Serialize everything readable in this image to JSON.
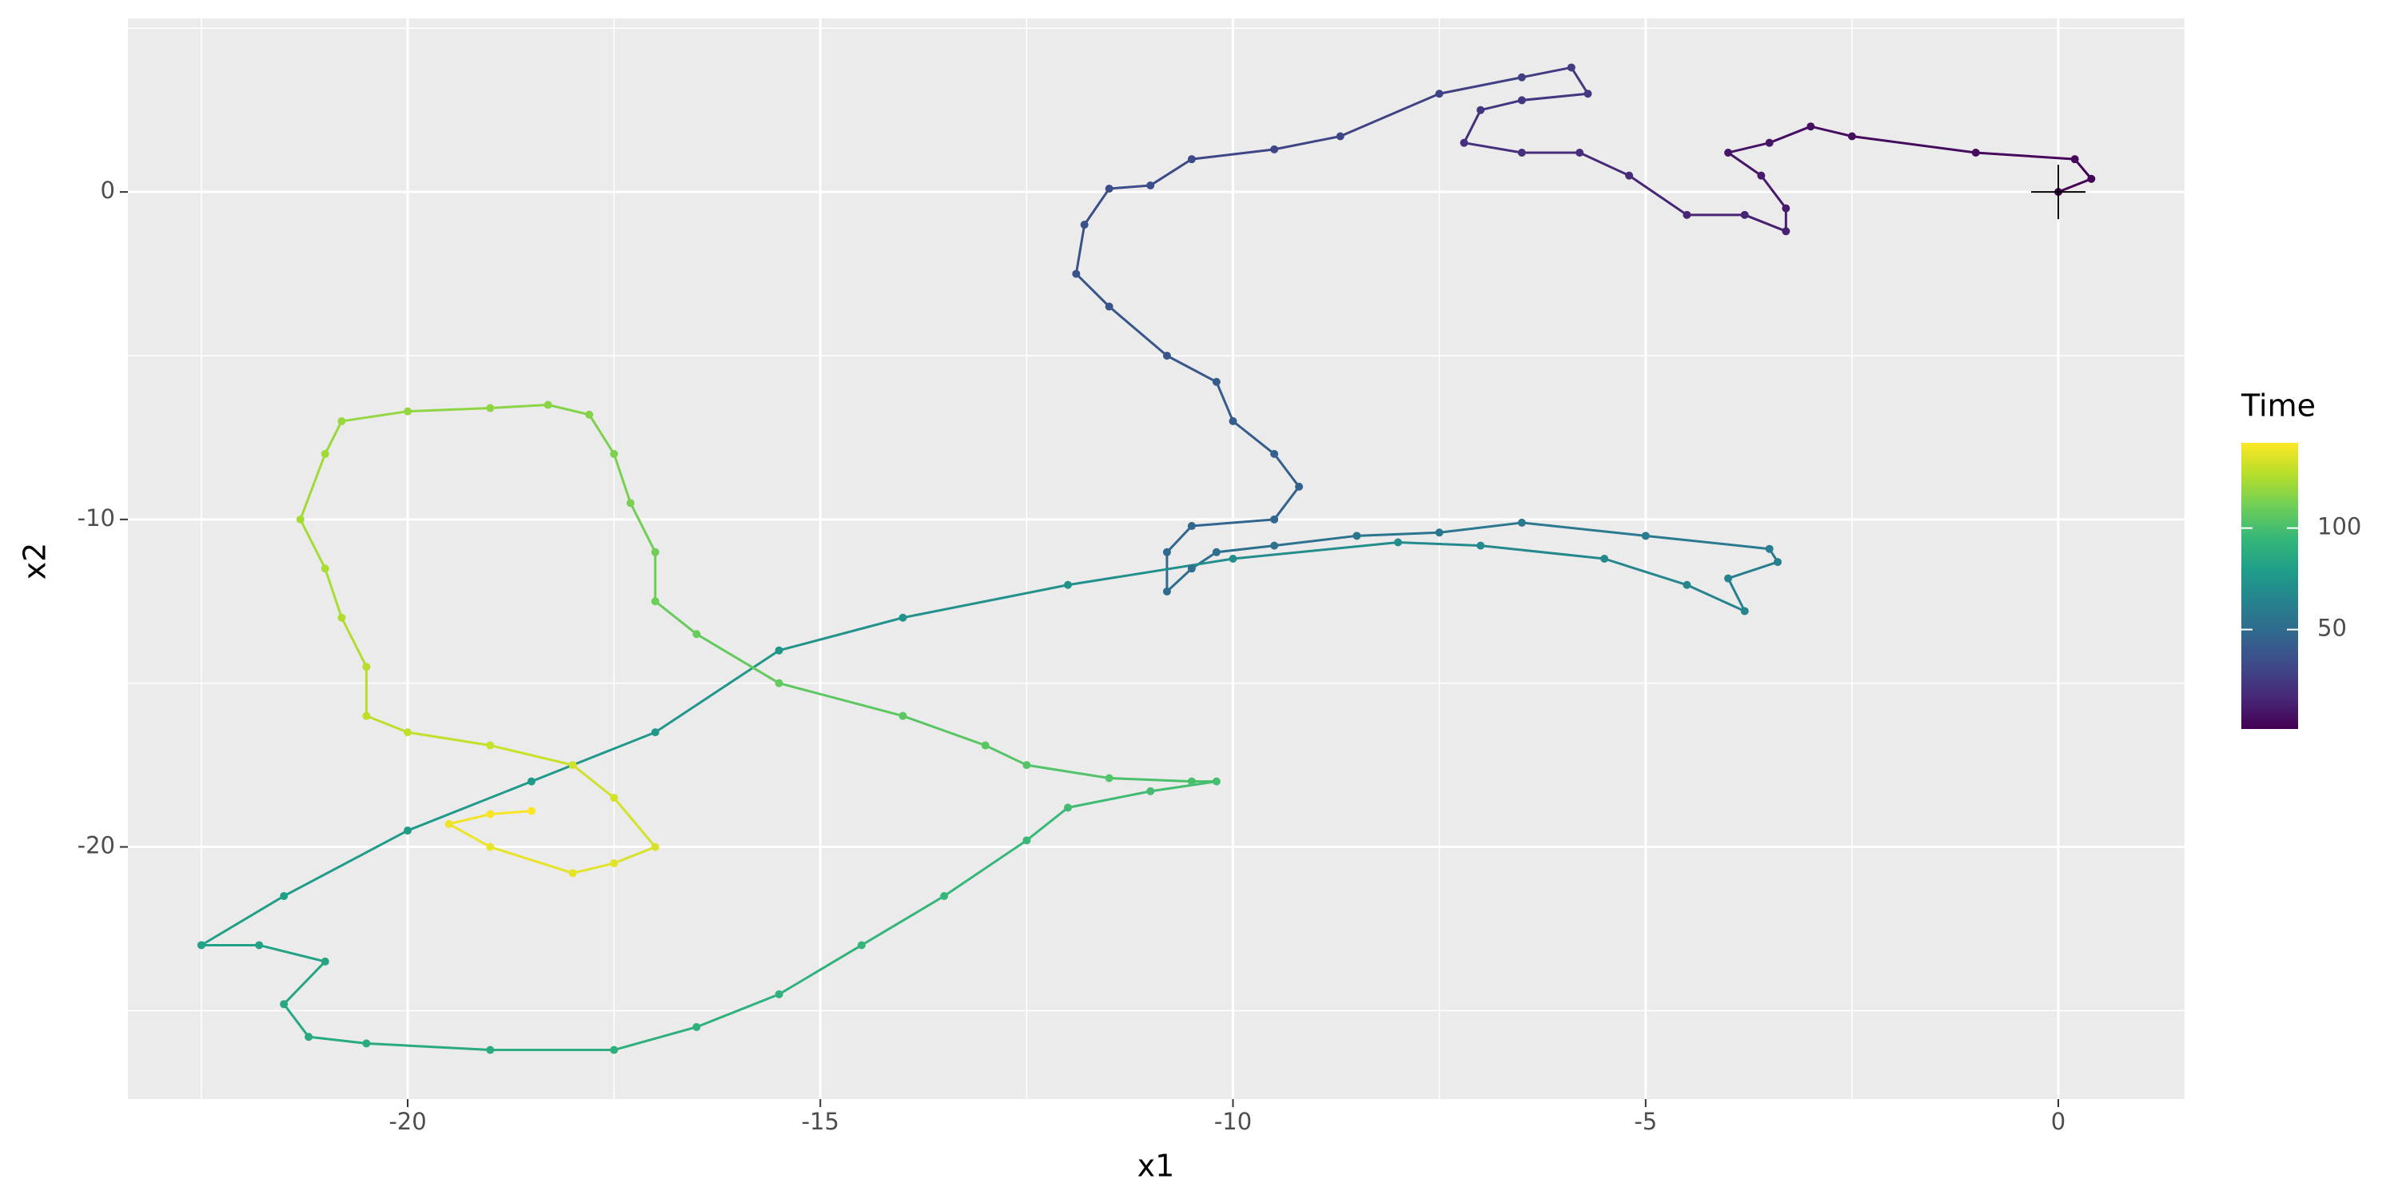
{
  "chart_data": {
    "type": "path",
    "x_label": "x1",
    "y_label": "x2",
    "x": [
      0,
      0.4,
      0.2,
      -1,
      -2.5,
      -3,
      -3.5,
      -4,
      -3.6,
      -3.3,
      -3.3,
      -3.8,
      -4.5,
      -5.2,
      -5.8,
      -6.5,
      -7.2,
      -7,
      -6.5,
      -5.7,
      -5.9,
      -6.5,
      -7.5,
      -8.7,
      -9.5,
      -10.5,
      -11,
      -11.5,
      -11.8,
      -11.9,
      -11.5,
      -10.8,
      -10.2,
      -10,
      -9.5,
      -9.2,
      -9.5,
      -10.5,
      -10.8,
      -10.8,
      -10.5,
      -10.2,
      -9.5,
      -8.5,
      -7.5,
      -6.5,
      -5,
      -3.5,
      -3.4,
      -4,
      -3.8,
      -4.5,
      -5.5,
      -7,
      -8,
      -10,
      -12,
      -14,
      -15.5,
      -17,
      -18.5,
      -20,
      -21.5,
      -22.5,
      -21.8,
      -21,
      -21.5,
      -21.2,
      -20.5,
      -19,
      -17.5,
      -16.5,
      -15.5,
      -14.5,
      -13.5,
      -12.5,
      -12,
      -11,
      -10.2,
      -10.5,
      -11.5,
      -12.5,
      -13,
      -14,
      -15.5,
      -16.5,
      -17,
      -17,
      -17.3,
      -17.5,
      -17.8,
      -18.3,
      -19,
      -20,
      -20.8,
      -21,
      -21.3,
      -21,
      -20.8,
      -20.5,
      -20.5,
      -20,
      -19,
      -18,
      -17.5,
      -17,
      -17.5,
      -18,
      -19,
      -19.5,
      -19,
      -18.5
    ],
    "y": [
      0,
      0.4,
      1,
      1.2,
      1.7,
      2,
      1.5,
      1.2,
      0.5,
      -0.5,
      -1.2,
      -0.7,
      -0.7,
      0.5,
      1.2,
      1.2,
      1.5,
      2.5,
      2.8,
      3,
      3.8,
      3.5,
      3,
      1.7,
      1.3,
      1,
      0.2,
      0.1,
      -1,
      -2.5,
      -3.5,
      -5,
      -5.8,
      -7,
      -8,
      -9,
      -10,
      -10.2,
      -11,
      -12.2,
      -11.5,
      -11,
      -10.8,
      -10.5,
      -10.4,
      -10.1,
      -10.5,
      -10.9,
      -11.3,
      -11.8,
      -12.8,
      -12,
      -11.2,
      -10.8,
      -10.7,
      -11.2,
      -12,
      -13,
      -14,
      -16.5,
      -18,
      -19.5,
      -21.5,
      -23,
      -23,
      -23.5,
      -24.8,
      -25.8,
      -26,
      -26.2,
      -26.2,
      -25.5,
      -24.5,
      -23,
      -21.5,
      -19.8,
      -18.8,
      -18.3,
      -18,
      -18,
      -17.9,
      -17.5,
      -16.9,
      -16,
      -15,
      -13.5,
      -12.5,
      -11,
      -9.5,
      -8,
      -6.8,
      -6.5,
      -6.6,
      -6.7,
      -7,
      -8,
      -10,
      -11.5,
      -13,
      -14.5,
      -16,
      -16.5,
      -16.9,
      -17.5,
      -18.5,
      -20,
      -20.5,
      -20.8,
      -20,
      -19.3,
      -19,
      -18.9
    ],
    "color_values": [
      1,
      2,
      4,
      5,
      6,
      7,
      9,
      10,
      11,
      12,
      14,
      15,
      16,
      18,
      19,
      20,
      21,
      23,
      24,
      25,
      26,
      28,
      29,
      30,
      31,
      33,
      34,
      35,
      37,
      38,
      39,
      40,
      42,
      43,
      44,
      45,
      47,
      48,
      49,
      51,
      52,
      53,
      54,
      56,
      57,
      58,
      59,
      61,
      62,
      63,
      65,
      66,
      67,
      68,
      70,
      71,
      72,
      73,
      75,
      76,
      77,
      78,
      80,
      81,
      82,
      84,
      85,
      86,
      87,
      89,
      90,
      91,
      92,
      94,
      95,
      96,
      98,
      99,
      100,
      101,
      103,
      104,
      105,
      106,
      108,
      109,
      110,
      111,
      113,
      114,
      115,
      117,
      118,
      119,
      120,
      122,
      123,
      124,
      125,
      127,
      128,
      129,
      131,
      132,
      133,
      134,
      136,
      137,
      138,
      139,
      141,
      142
    ],
    "color_label": "Time",
    "colormap": [
      "#440154",
      "#482878",
      "#3e4989",
      "#31688e",
      "#26828e",
      "#1f9e89",
      "#35b779",
      "#6ece58",
      "#b5de2b",
      "#fde725"
    ],
    "color_lim": [
      1,
      142
    ],
    "color_ticks": [
      50,
      100
    ],
    "xlim": [
      -23.39,
      1.53
    ],
    "ylim": [
      -27.7,
      5.3
    ],
    "xticks": [
      -20,
      -15,
      -10,
      -5,
      0
    ],
    "yticks": [
      -20,
      -10,
      0
    ],
    "minor_xticks": [
      -22.5,
      -17.5,
      -12.5,
      -7.5,
      -2.5
    ],
    "minor_yticks": [
      -25,
      -15,
      -5,
      5
    ],
    "grid": true
  }
}
